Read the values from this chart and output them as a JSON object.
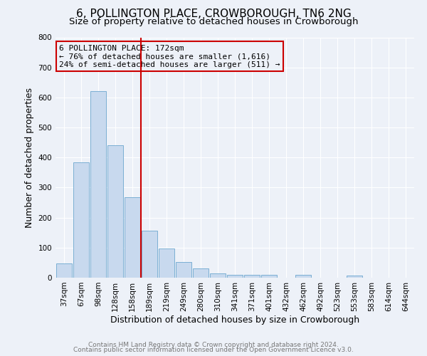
{
  "title": "6, POLLINGTON PLACE, CROWBOROUGH, TN6 2NG",
  "subtitle": "Size of property relative to detached houses in Crowborough",
  "xlabel": "Distribution of detached houses by size in Crowborough",
  "ylabel": "Number of detached properties",
  "categories": [
    "37sqm",
    "67sqm",
    "98sqm",
    "128sqm",
    "158sqm",
    "189sqm",
    "219sqm",
    "249sqm",
    "280sqm",
    "310sqm",
    "341sqm",
    "371sqm",
    "401sqm",
    "432sqm",
    "462sqm",
    "492sqm",
    "523sqm",
    "553sqm",
    "583sqm",
    "614sqm",
    "644sqm"
  ],
  "values": [
    48,
    385,
    622,
    442,
    268,
    156,
    97,
    51,
    30,
    15,
    10,
    10,
    10,
    0,
    10,
    0,
    0,
    7,
    0,
    0,
    0
  ],
  "bar_color": "#c8d9ee",
  "bar_edge_color": "#7bafd4",
  "vline_x": 4.5,
  "vline_color": "#cc0000",
  "annotation_title": "6 POLLINGTON PLACE: 172sqm",
  "annotation_line1": "← 76% of detached houses are smaller (1,616)",
  "annotation_line2": "24% of semi-detached houses are larger (511) →",
  "annotation_box_color": "#cc0000",
  "ylim": [
    0,
    800
  ],
  "yticks": [
    0,
    100,
    200,
    300,
    400,
    500,
    600,
    700,
    800
  ],
  "footer1": "Contains HM Land Registry data © Crown copyright and database right 2024.",
  "footer2": "Contains public sector information licensed under the Open Government Licence v3.0.",
  "background_color": "#edf1f8",
  "grid_color": "#ffffff",
  "title_fontsize": 11,
  "subtitle_fontsize": 9.5,
  "axis_label_fontsize": 9,
  "tick_fontsize": 7.5,
  "footer_fontsize": 6.5
}
